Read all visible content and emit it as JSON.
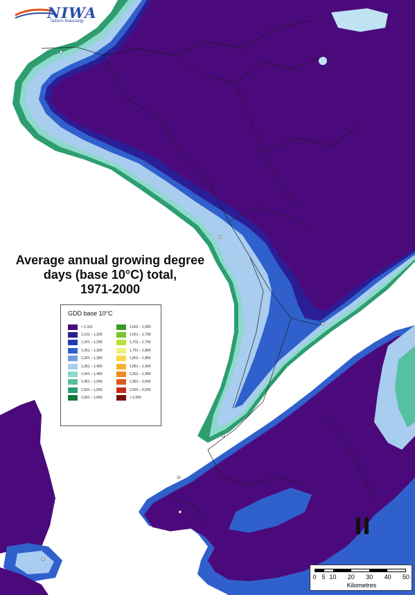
{
  "logo": {
    "text": "NIWA",
    "tagline": "Taihoro Nukurangi"
  },
  "title": {
    "line1": "Average annual growing degree",
    "line2": "days (base 10°C) total,",
    "line3": "1971-2000"
  },
  "legend": {
    "title": "GDD base 10°C",
    "left_items": [
      {
        "label": "< 1,101",
        "color": "#4b0a7c"
      },
      {
        "label": "1,101 – 1,200",
        "color": "#2a1e96"
      },
      {
        "label": "1,201 – 1,250",
        "color": "#1f3cb4"
      },
      {
        "label": "1,251 – 1,300",
        "color": "#3060cc"
      },
      {
        "label": "1,301 – 1,350",
        "color": "#6f9ee0"
      },
      {
        "label": "1,351 – 1,400",
        "color": "#a9cdef"
      },
      {
        "label": "1,401 – 1,450",
        "color": "#8ed9cc"
      },
      {
        "label": "1,451 – 1,500",
        "color": "#56c0a0"
      },
      {
        "label": "1,501 – 1,550",
        "color": "#2e9d70"
      },
      {
        "label": "1,551 – 1,600",
        "color": "#137a3c"
      }
    ],
    "right_items": [
      {
        "label": "1,601 – 1,650",
        "color": "#3a9a2a"
      },
      {
        "label": "1,651 – 1,700",
        "color": "#7cc52e"
      },
      {
        "label": "1,701 – 1,750",
        "color": "#b8e03a"
      },
      {
        "label": "1,751 – 1,800",
        "color": "#eef27a"
      },
      {
        "label": "1,801 – 1,850",
        "color": "#f7d94a"
      },
      {
        "label": "1,851 – 1,900",
        "color": "#f5b22a"
      },
      {
        "label": "1,901 – 1,950",
        "color": "#f08a20"
      },
      {
        "label": "1,951 – 2,000",
        "color": "#e0561c"
      },
      {
        "label": "2,001 – 2,050",
        "color": "#c82a1a"
      },
      {
        "label": "> 2,050",
        "color": "#7a0c0c"
      }
    ]
  },
  "scalebar": {
    "ticks": [
      "0",
      "5",
      "10",
      "20",
      "30",
      "40",
      "50"
    ],
    "unit": "Kilometres"
  },
  "north_arrow": "N",
  "colors": {
    "background": "#ffffff",
    "lowest_class": "#4b0a7c",
    "coast_blue": "#2a1e96",
    "coast_lightblue": "#a9cdef",
    "coast_green": "#2e9d70",
    "roads": "#1a1a1a"
  }
}
